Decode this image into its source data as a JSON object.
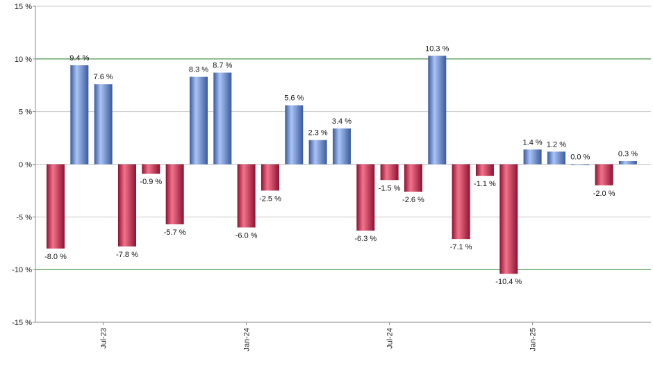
{
  "chart_data": {
    "type": "bar",
    "title": "",
    "xlabel": "",
    "ylabel": "",
    "ylim": [
      -15,
      15
    ],
    "yticks": [
      15,
      10,
      5,
      0,
      -5,
      -10,
      -15
    ],
    "ytick_labels": [
      "15 %",
      "10 %",
      "5 %",
      "0 %",
      "-5 %",
      "-10 %",
      "-15 %"
    ],
    "reference_lines": [
      10,
      -10
    ],
    "grid": true,
    "x_tick_labels": [
      "Jul-23",
      "Jan-24",
      "Jul-24",
      "Jan-25"
    ],
    "x_tick_positions": [
      2,
      8,
      14,
      20
    ],
    "values": [
      -8.0,
      9.4,
      7.6,
      -7.8,
      -0.9,
      -5.7,
      8.3,
      8.7,
      -6.0,
      -2.5,
      5.6,
      2.3,
      3.4,
      -6.3,
      -1.5,
      -2.6,
      10.3,
      -7.1,
      -1.1,
      -10.4,
      1.4,
      1.2,
      0.0,
      -2.0,
      0.3
    ],
    "value_labels": [
      "-8.0 %",
      "9.4 %",
      "7.6 %",
      "-7.8 %",
      "-0.9 %",
      "-5.7 %",
      "8.3 %",
      "8.7 %",
      "-6.0 %",
      "-2.5 %",
      "5.6 %",
      "2.3 %",
      "3.4 %",
      "-6.3 %",
      "-1.5 %",
      "-2.6 %",
      "10.3 %",
      "-7.1 %",
      "-1.1 %",
      "-10.4 %",
      "1.4 %",
      "1.2 %",
      "0.0 %",
      "-2.0 %",
      "0.3 %"
    ],
    "colors": {
      "positive_light": "#a9c4f5",
      "positive_dark": "#3b5a9c",
      "negative_light": "#f2738c",
      "negative_dark": "#8e1230",
      "gridline": "#c8c8c8",
      "reference_line": "#1f7a1f",
      "axis": "#888888"
    }
  }
}
